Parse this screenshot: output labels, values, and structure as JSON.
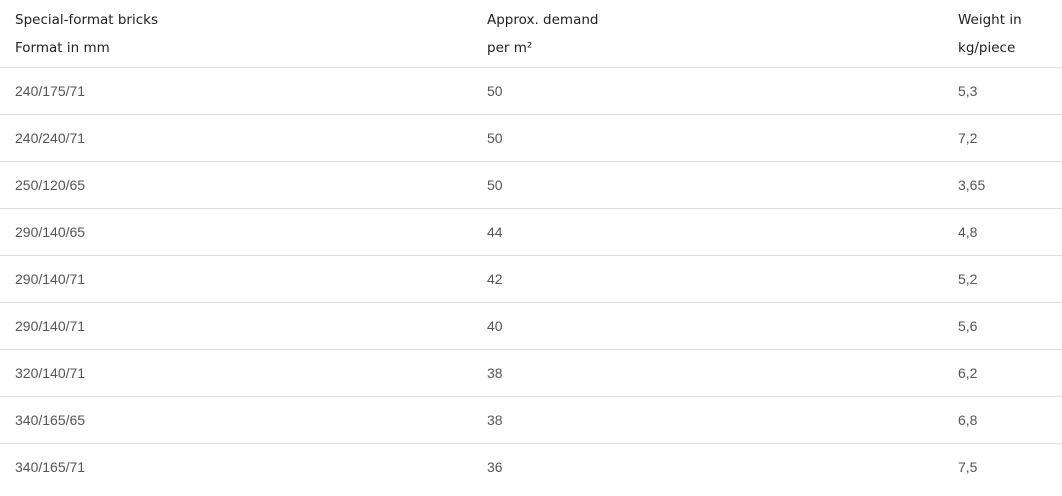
{
  "table": {
    "headers": [
      {
        "line1": "Special-format bricks",
        "line2": "Format in mm"
      },
      {
        "line1": "Approx. demand",
        "line2": "per m²"
      },
      {
        "line1": "Weight in",
        "line2": "kg/piece"
      }
    ],
    "rows": [
      [
        "240/175/71",
        "50",
        "5,3"
      ],
      [
        "240/240/71",
        "50",
        "7,2"
      ],
      [
        "250/120/65",
        "50",
        "3,65"
      ],
      [
        "290/140/65",
        "44",
        "4,8"
      ],
      [
        "290/140/71",
        "42",
        "5,2"
      ],
      [
        "290/140/71",
        "40",
        "5,6"
      ],
      [
        "320/140/71",
        "38",
        "6,2"
      ],
      [
        "340/165/65",
        "38",
        "6,8"
      ],
      [
        "340/165/71",
        "36",
        "7,5"
      ]
    ]
  }
}
